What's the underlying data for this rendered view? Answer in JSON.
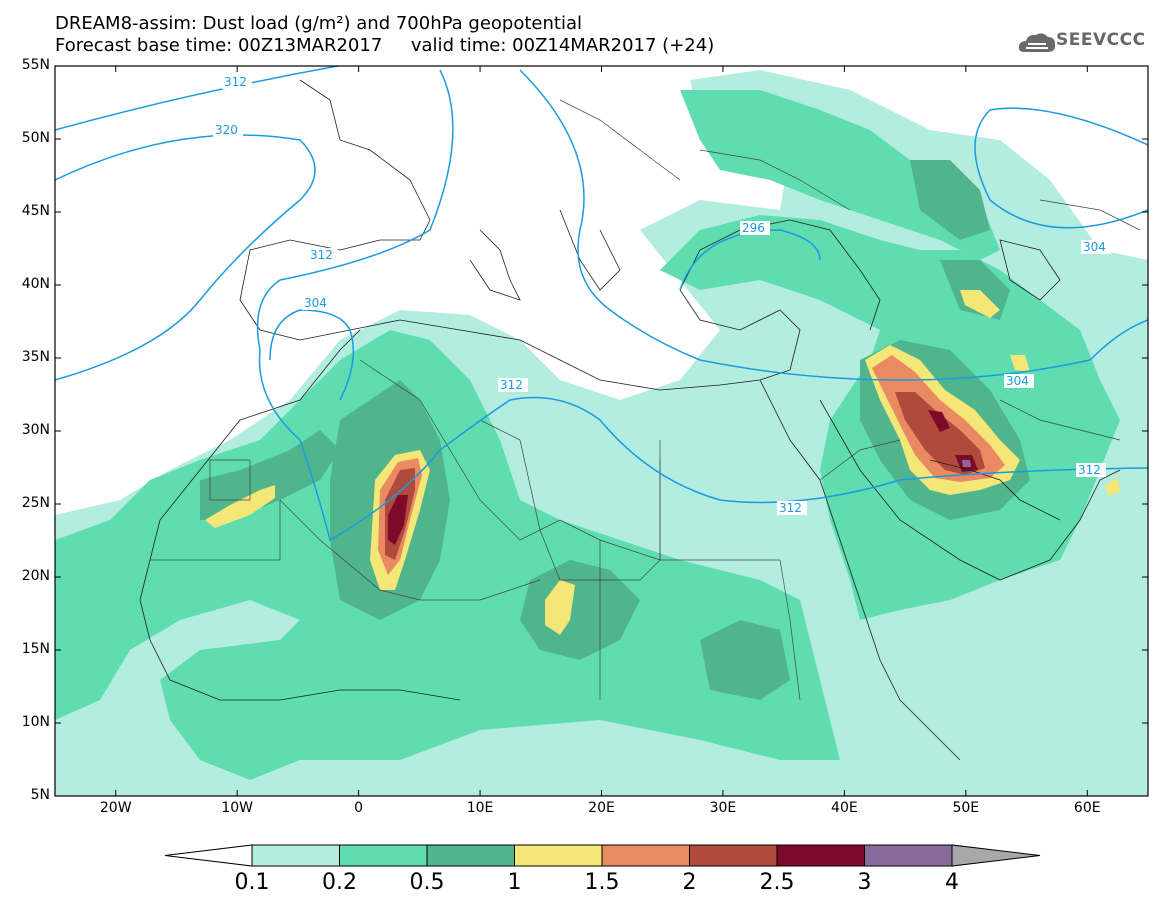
{
  "title_line1": "DREAM8-assim: Dust load (g/m²) and 700hPa geopotential",
  "title_line2": "Forecast base time: 00Z13MAR2017     valid time: 00Z14MAR2017 (+24)",
  "logo_text": "SEEVCCC",
  "lat_labels": [
    "55N",
    "50N",
    "45N",
    "40N",
    "35N",
    "30N",
    "25N",
    "20N",
    "15N",
    "10N",
    "5N"
  ],
  "lon_labels": [
    "20W",
    "10W",
    "0",
    "10E",
    "20E",
    "30E",
    "40E",
    "50E",
    "60E"
  ],
  "colorbar": {
    "labels": [
      "0.1",
      "0.2",
      "0.5",
      "1",
      "1.5",
      "2",
      "2.5",
      "3",
      "4"
    ],
    "colors": [
      "#b2ede0",
      "#5fddb0",
      "#50b48c",
      "#f5e678",
      "#e98a62",
      "#b04a3c",
      "#7c0a28",
      "#8a6a9a",
      "#a8a8a8"
    ]
  },
  "contour_labels": [
    "312",
    "320",
    "312",
    "304",
    "312",
    "312",
    "296",
    "304",
    "312",
    "304"
  ],
  "map": {
    "lon_range": [
      -25,
      65
    ],
    "lat_range": [
      5,
      55
    ]
  }
}
